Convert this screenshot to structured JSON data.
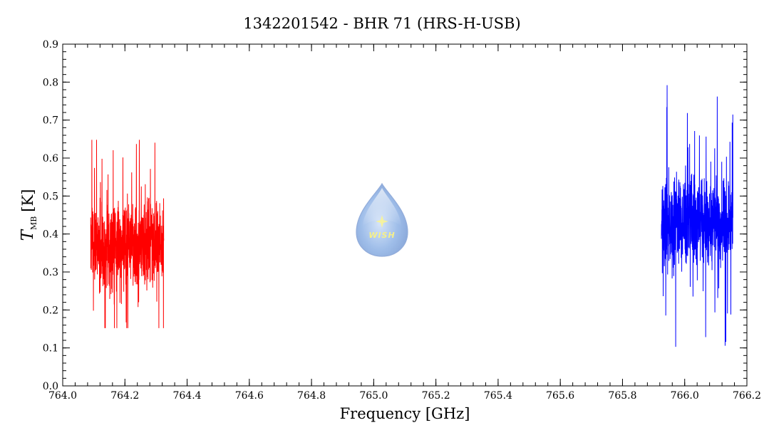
{
  "chart_data": {
    "type": "line",
    "title": "1342201542 - BHR 71 (HRS-H-USB)",
    "xlabel": "Frequency [GHz]",
    "ylabel": {
      "symbol": "T",
      "subscript": "MB",
      "unit": "[K]"
    },
    "xlim": [
      764.0,
      766.2
    ],
    "ylim": [
      0.0,
      0.9
    ],
    "x_ticks": [
      "764.0",
      "764.2",
      "764.4",
      "764.6",
      "764.8",
      "765.0",
      "765.2",
      "765.4",
      "765.6",
      "765.8",
      "766.0",
      "766.2"
    ],
    "y_ticks": [
      "0.0",
      "0.1",
      "0.2",
      "0.3",
      "0.4",
      "0.5",
      "0.6",
      "0.7",
      "0.8",
      "0.9"
    ],
    "grid": false,
    "series": [
      {
        "color": "#ff0000",
        "x_range": [
          764.09,
          764.325
        ],
        "mean": 0.375,
        "min": 0.152,
        "max": 0.648,
        "points": 700,
        "seed": 7
      },
      {
        "color": "#0000ff",
        "x_range": [
          765.925,
          766.155
        ],
        "mean": 0.43,
        "min": 0.103,
        "max": 0.792,
        "points": 700,
        "seed": 13
      }
    ],
    "watermark": {
      "text": "WISH",
      "icon": "wish-droplet-logo"
    }
  }
}
